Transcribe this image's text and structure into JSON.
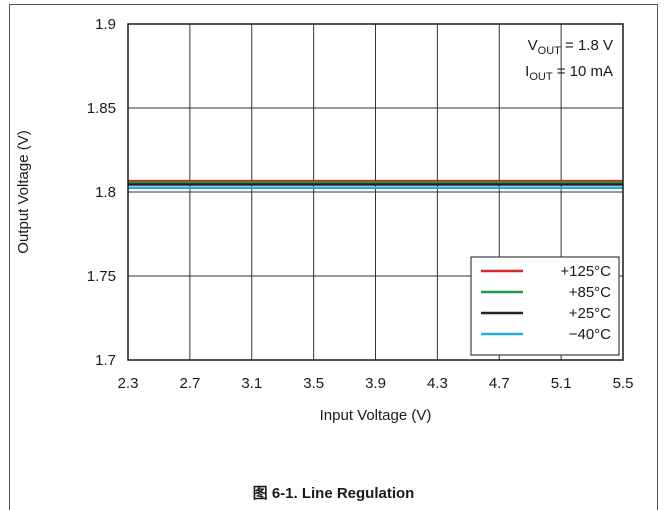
{
  "caption": "图 6-1. Line Regulation",
  "chart_data": {
    "type": "line",
    "xlabel": "Input Voltage (V)",
    "ylabel": "Output Voltage (V)",
    "xlim": [
      2.3,
      5.5
    ],
    "ylim": [
      1.7,
      1.9
    ],
    "xticks": [
      "2.3",
      "2.7",
      "3.1",
      "3.5",
      "3.9",
      "4.3",
      "4.7",
      "5.1",
      "5.5"
    ],
    "yticks": [
      "1.7",
      "1.75",
      "1.8",
      "1.85",
      "1.9"
    ],
    "grid": true,
    "annotation": {
      "line1": {
        "main": "V",
        "sub": "OUT",
        "rest": " = 1.8 V"
      },
      "line2": {
        "main": "I",
        "sub": "OUT",
        "rest": " = 10 mA"
      }
    },
    "legend_position": "bottom-right",
    "series": [
      {
        "name": "+125°C",
        "color": "#d62728",
        "x": [
          2.3,
          5.5
        ],
        "y": [
          1.8065,
          1.8065
        ]
      },
      {
        "name": "+85°C",
        "color": "#1a9a50",
        "x": [
          2.3,
          5.5
        ],
        "y": [
          1.8055,
          1.8055
        ]
      },
      {
        "name": "+25°C",
        "color": "#222222",
        "x": [
          2.3,
          5.5
        ],
        "y": [
          1.8045,
          1.8045
        ]
      },
      {
        "name": "−40°C",
        "color": "#29abe2",
        "x": [
          2.3,
          5.5
        ],
        "y": [
          1.8025,
          1.8025
        ]
      }
    ]
  }
}
